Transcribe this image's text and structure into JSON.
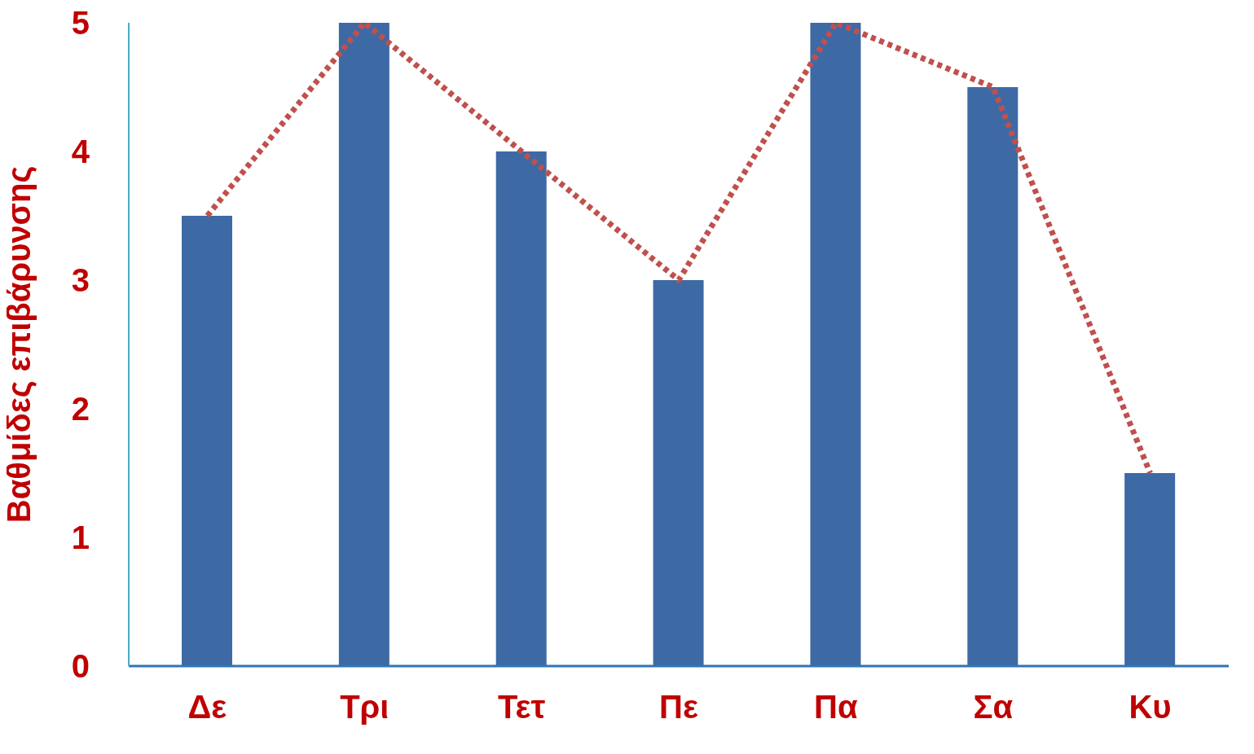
{
  "chart_data": {
    "type": "bar",
    "ylabel": "Βαθμίδες επιβάρυνσης",
    "categories": [
      "Δε",
      "Τρι",
      "Τετ",
      "Πε",
      "Πα",
      "Σα",
      "Κυ"
    ],
    "series": [
      {
        "color": "#3d6aa5",
        "values": [
          3.5,
          5,
          4,
          3,
          5,
          4.5,
          1.5
        ]
      },
      {
        "type": "line",
        "color": "#c0504d",
        "line_style": "dotted",
        "values": [
          3.5,
          5,
          4,
          3,
          5,
          4.5,
          1.5
        ]
      }
    ],
    "ylim": [
      0,
      5
    ],
    "yticks": [
      0,
      1,
      2,
      3,
      4,
      5
    ],
    "grid": false,
    "legend": false
  }
}
